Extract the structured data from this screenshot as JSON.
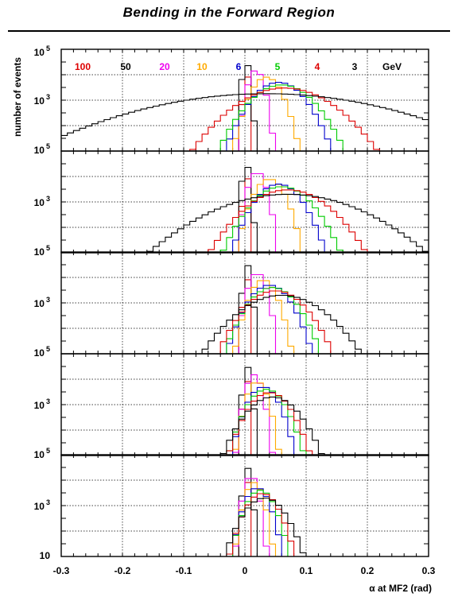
{
  "title": "Bending in the Forward Region",
  "chart_data": {
    "type": "line",
    "layout": "5 vertically stacked histogram panels sharing one x axis",
    "xlabel": "α at MF2 (rad)",
    "ylabel": "number of events",
    "xlim": [
      -0.3,
      0.3
    ],
    "ylim": [
      10,
      100000
    ],
    "ylog": true,
    "grid": true,
    "x_ticks": [
      "-0.3",
      "-0.2",
      "-0.1",
      "0",
      "0.1",
      "0.2",
      "0.3"
    ],
    "y_ticks": [
      {
        "value": 100000,
        "base": "10",
        "exp": "5"
      },
      {
        "value": 1000,
        "base": "10",
        "exp": "3"
      },
      {
        "value": 10,
        "base": "10",
        "exp": ""
      }
    ],
    "legend_unit": "GeV",
    "legend": [
      {
        "label": "100",
        "color": "#dd0000"
      },
      {
        "label": "50",
        "color": "#000000"
      },
      {
        "label": "20",
        "color": "#ee00ee"
      },
      {
        "label": "10",
        "color": "#ffaa00"
      },
      {
        "label": "6",
        "color": "#0000cc"
      },
      {
        "label": "5",
        "color": "#00cc00"
      },
      {
        "label": "4",
        "color": "#dd0000"
      },
      {
        "label": "3",
        "color": "#000000"
      }
    ],
    "panels": [
      {
        "series": [
          {
            "name": "100",
            "center": 0.001,
            "sigma": 0.002,
            "peak": 60000,
            "color": "#dd0000"
          },
          {
            "name": "50",
            "center": 0.002,
            "sigma": 0.004,
            "peak": 30000,
            "color": "#000000"
          },
          {
            "name": "20",
            "center": 0.018,
            "sigma": 0.008,
            "peak": 15000,
            "color": "#ee00ee"
          },
          {
            "name": "10",
            "center": 0.035,
            "sigma": 0.015,
            "peak": 8000,
            "color": "#ffaa00"
          },
          {
            "name": "6",
            "center": 0.055,
            "sigma": 0.025,
            "peak": 5000,
            "color": "#0000cc"
          },
          {
            "name": "5",
            "center": 0.06,
            "sigma": 0.03,
            "peak": 4000,
            "color": "#00cc00"
          },
          {
            "name": "4",
            "center": 0.065,
            "sigma": 0.045,
            "peak": 3000,
            "color": "#dd0000"
          },
          {
            "name": "3",
            "center": 0.035,
            "sigma": 0.12,
            "peak": 1800,
            "color": "#000000"
          }
        ]
      },
      {
        "series": [
          {
            "name": "100",
            "center": 0.001,
            "sigma": 0.002,
            "peak": 60000,
            "color": "#dd0000"
          },
          {
            "name": "50",
            "center": 0.002,
            "sigma": 0.004,
            "peak": 30000,
            "color": "#000000"
          },
          {
            "name": "20",
            "center": 0.02,
            "sigma": 0.009,
            "peak": 15000,
            "color": "#ee00ee"
          },
          {
            "name": "10",
            "center": 0.04,
            "sigma": 0.015,
            "peak": 8000,
            "color": "#ffaa00"
          },
          {
            "name": "6",
            "center": 0.055,
            "sigma": 0.022,
            "peak": 5000,
            "color": "#0000cc"
          },
          {
            "name": "5",
            "center": 0.06,
            "sigma": 0.028,
            "peak": 4000,
            "color": "#00cc00"
          },
          {
            "name": "4",
            "center": 0.07,
            "sigma": 0.038,
            "peak": 3000,
            "color": "#dd0000"
          },
          {
            "name": "3",
            "center": 0.07,
            "sigma": 0.07,
            "peak": 2000,
            "color": "#000000"
          }
        ]
      },
      {
        "series": [
          {
            "name": "100",
            "center": 0.001,
            "sigma": 0.002,
            "peak": 60000,
            "color": "#dd0000"
          },
          {
            "name": "50",
            "center": 0.004,
            "sigma": 0.004,
            "peak": 30000,
            "color": "#000000"
          },
          {
            "name": "20",
            "center": 0.02,
            "sigma": 0.009,
            "peak": 15000,
            "color": "#ee00ee"
          },
          {
            "name": "10",
            "center": 0.03,
            "sigma": 0.013,
            "peak": 8000,
            "color": "#ffaa00"
          },
          {
            "name": "6",
            "center": 0.04,
            "sigma": 0.02,
            "peak": 5000,
            "color": "#0000cc"
          },
          {
            "name": "5",
            "center": 0.045,
            "sigma": 0.023,
            "peak": 4000,
            "color": "#00cc00"
          },
          {
            "name": "4",
            "center": 0.05,
            "sigma": 0.028,
            "peak": 3000,
            "color": "#dd0000"
          },
          {
            "name": "3",
            "center": 0.06,
            "sigma": 0.04,
            "peak": 2000,
            "color": "#000000"
          }
        ]
      },
      {
        "series": [
          {
            "name": "100",
            "center": 0.001,
            "sigma": 0.002,
            "peak": 60000,
            "color": "#dd0000"
          },
          {
            "name": "50",
            "center": 0.004,
            "sigma": 0.004,
            "peak": 30000,
            "color": "#000000"
          },
          {
            "name": "20",
            "center": 0.015,
            "sigma": 0.008,
            "peak": 15000,
            "color": "#ee00ee"
          },
          {
            "name": "10",
            "center": 0.02,
            "sigma": 0.01,
            "peak": 8000,
            "color": "#ffaa00"
          },
          {
            "name": "6",
            "center": 0.03,
            "sigma": 0.015,
            "peak": 5000,
            "color": "#0000cc"
          },
          {
            "name": "5",
            "center": 0.035,
            "sigma": 0.018,
            "peak": 4000,
            "color": "#00cc00"
          },
          {
            "name": "4",
            "center": 0.04,
            "sigma": 0.02,
            "peak": 3000,
            "color": "#dd0000"
          },
          {
            "name": "3",
            "center": 0.045,
            "sigma": 0.025,
            "peak": 2000,
            "color": "#000000"
          }
        ]
      },
      {
        "series": [
          {
            "name": "100",
            "center": 0.001,
            "sigma": 0.002,
            "peak": 60000,
            "color": "#dd0000"
          },
          {
            "name": "50",
            "center": 0.004,
            "sigma": 0.004,
            "peak": 30000,
            "color": "#000000"
          },
          {
            "name": "20",
            "center": 0.01,
            "sigma": 0.007,
            "peak": 15000,
            "color": "#ee00ee"
          },
          {
            "name": "10",
            "center": 0.015,
            "sigma": 0.009,
            "peak": 8000,
            "color": "#ffaa00"
          },
          {
            "name": "6",
            "center": 0.02,
            "sigma": 0.012,
            "peak": 5000,
            "color": "#0000cc"
          },
          {
            "name": "5",
            "center": 0.025,
            "sigma": 0.014,
            "peak": 4000,
            "color": "#00cc00"
          },
          {
            "name": "4",
            "center": 0.028,
            "sigma": 0.016,
            "peak": 3000,
            "color": "#dd0000"
          },
          {
            "name": "3",
            "center": 0.032,
            "sigma": 0.02,
            "peak": 2000,
            "color": "#000000"
          }
        ]
      }
    ]
  }
}
